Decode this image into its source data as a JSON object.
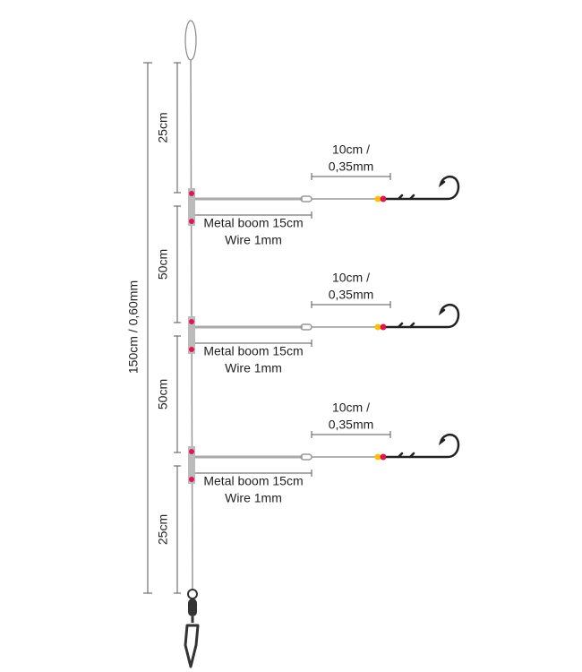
{
  "overall_length": "150cm / 0,60mm",
  "segments": [
    "25cm",
    "50cm",
    "50cm",
    "25cm"
  ],
  "branches": [
    {
      "snood": [
        "10cm /",
        "0,35mm"
      ],
      "boom": [
        "Metal boom 15cm",
        "Wire 1mm"
      ]
    },
    {
      "snood": [
        "10cm /",
        "0,35mm"
      ],
      "boom": [
        "Metal boom 15cm",
        "Wire 1mm"
      ]
    },
    {
      "snood": [
        "10cm /",
        "0,35mm"
      ],
      "boom": [
        "Metal boom 15cm",
        "Wire 1mm"
      ]
    }
  ]
}
